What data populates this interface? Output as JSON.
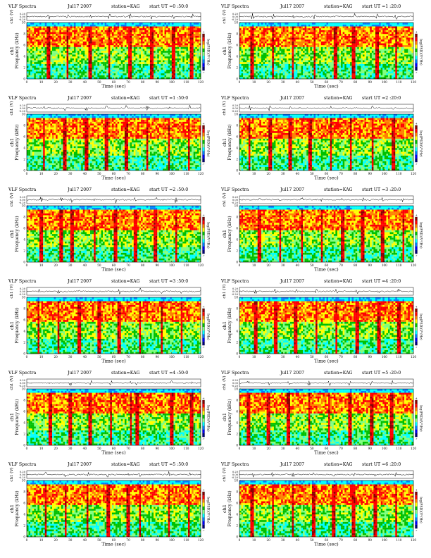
{
  "colors": {
    "background": "#ffffff",
    "colormap": [
      "#000080",
      "#0000ff",
      "#0080ff",
      "#00ffff",
      "#80ff80",
      "#00c000",
      "#ffff00",
      "#ff8000",
      "#ff0000",
      "#8b0000"
    ]
  },
  "chart_data": [
    {
      "type": "heatmap",
      "title": "VLF Spectra",
      "date": "Jul17 2007",
      "station": "station=KAG",
      "start": "start  UT =0 :50:0",
      "x": {
        "label": "Time (sec)",
        "range": [
          0,
          120
        ],
        "ticks": [
          "0",
          "10",
          "20",
          "30",
          "40",
          "50",
          "60",
          "70",
          "80",
          "90",
          "100",
          "110",
          "120"
        ]
      },
      "y": {
        "label": "Frequency (kHz)",
        "channel_label": "ch1",
        "range": [
          0,
          10
        ],
        "ticks": [
          "0",
          "2",
          "4",
          "6",
          "8",
          "10"
        ]
      },
      "trace": {
        "label": "ch1 (V)",
        "ticks": [
          "0.20",
          "0.00",
          "-0.20"
        ]
      },
      "colorbar": {
        "label": "log(PSD)(V²/Hz)",
        "ticks": [
          "-4",
          "-7"
        ]
      },
      "bursts": [
        15,
        28,
        44,
        57,
        71,
        86,
        101,
        114
      ]
    },
    {
      "type": "heatmap",
      "title": "VLF Spectra",
      "date": "Jul17 2007",
      "station": "station=KAG",
      "start": "start  UT =1 :20:0",
      "x": {
        "label": "Time (sec)",
        "range": [
          0,
          120
        ],
        "ticks": [
          "0",
          "10",
          "20",
          "30",
          "40",
          "50",
          "60",
          "70",
          "80",
          "90",
          "100",
          "110",
          "120"
        ]
      },
      "y": {
        "label": "Frequency (kHz)",
        "channel_label": "ch1",
        "range": [
          0,
          10
        ],
        "ticks": [
          "0",
          "2",
          "4",
          "6",
          "8",
          "10"
        ]
      },
      "trace": {
        "label": "ch1 (V)",
        "ticks": [
          "0.20",
          "0.00",
          "-0.20"
        ]
      },
      "colorbar": {
        "label": "log(PSD)(V²/Hz)",
        "ticks": [
          "-4",
          "-7"
        ]
      },
      "bursts": [
        9,
        23,
        37,
        52,
        66,
        79,
        95,
        108
      ]
    },
    {
      "type": "heatmap",
      "title": "VLF Spectra",
      "date": "Jul17 2007",
      "station": "station=KAG",
      "start": "start  UT =1 :50:0",
      "x": {
        "label": "Time (sec)",
        "range": [
          0,
          120
        ],
        "ticks": [
          "0",
          "10",
          "20",
          "30",
          "40",
          "50",
          "60",
          "70",
          "80",
          "90",
          "100",
          "110",
          "120"
        ]
      },
      "y": {
        "label": "Frequency (kHz)",
        "channel_label": "ch1",
        "range": [
          0,
          10
        ],
        "ticks": [
          "0",
          "2",
          "4",
          "6",
          "8",
          "10"
        ]
      },
      "trace": {
        "label": "ch1 (V)",
        "ticks": [
          "0.20",
          "0.00",
          "-0.20"
        ]
      },
      "colorbar": {
        "label": "log(PSD)(V²/Hz)",
        "ticks": [
          "-4",
          "-7"
        ]
      },
      "bursts": [
        12,
        26,
        41,
        55,
        69,
        83,
        98,
        112
      ]
    },
    {
      "type": "heatmap",
      "title": "VLF Spectra",
      "date": "Jul17 2007",
      "station": "station=KAG",
      "start": "start  UT =2 :20:0",
      "x": {
        "label": "Time (sec)",
        "range": [
          0,
          120
        ],
        "ticks": [
          "0",
          "10",
          "20",
          "30",
          "40",
          "50",
          "60",
          "70",
          "80",
          "90",
          "100",
          "110",
          "120"
        ]
      },
      "y": {
        "label": "Frequency (kHz)",
        "channel_label": "ch1",
        "range": [
          0,
          10
        ],
        "ticks": [
          "0",
          "2",
          "4",
          "6",
          "8",
          "10"
        ]
      },
      "trace": {
        "label": "ch1 (V)",
        "ticks": [
          "0.20",
          "0.00",
          "-0.20"
        ]
      },
      "colorbar": {
        "label": "log(PSD)(V²/Hz)",
        "ticks": [
          "-4",
          "-7"
        ]
      },
      "bursts": [
        7,
        21,
        35,
        49,
        63,
        77,
        92,
        106
      ]
    },
    {
      "type": "heatmap",
      "title": "VLF Spectra",
      "date": "Jul17 2007",
      "station": "station=KAG",
      "start": "start  UT =2 :50:0",
      "x": {
        "label": "Time (sec)",
        "range": [
          0,
          120
        ],
        "ticks": [
          "0",
          "10",
          "20",
          "30",
          "40",
          "50",
          "60",
          "70",
          "80",
          "90",
          "100",
          "110",
          "120"
        ]
      },
      "y": {
        "label": "Frequency (kHz)",
        "channel_label": "ch1",
        "range": [
          0,
          10
        ],
        "ticks": [
          "0",
          "2",
          "4",
          "6",
          "8",
          "10"
        ]
      },
      "trace": {
        "label": "ch1 (V)",
        "ticks": [
          "0.20",
          "0.00",
          "-0.20"
        ]
      },
      "colorbar": {
        "label": "log(PSD)(V²/Hz)",
        "ticks": [
          "-4",
          "-7"
        ]
      },
      "bursts": [
        10,
        24,
        31,
        47,
        61,
        75,
        89,
        103
      ]
    },
    {
      "type": "heatmap",
      "title": "VLF Spectra",
      "date": "Jul17 2007",
      "station": "station=KAG",
      "start": "start  UT =3 :20:0",
      "x": {
        "label": "Time (sec)",
        "range": [
          0,
          120
        ],
        "ticks": [
          "0",
          "10",
          "20",
          "30",
          "40",
          "50",
          "60",
          "70",
          "80",
          "90",
          "100",
          "110",
          "120"
        ]
      },
      "y": {
        "label": "Frequency (kHz)",
        "channel_label": "ch1",
        "range": [
          0,
          10
        ],
        "ticks": [
          "0",
          "2",
          "4",
          "6",
          "8",
          "10"
        ]
      },
      "trace": {
        "label": "ch1 (V)",
        "ticks": [
          "0.20",
          "0.00",
          "-0.20"
        ]
      },
      "colorbar": {
        "label": "log(PSD)(V²/Hz)",
        "ticks": [
          "-4",
          "-7"
        ]
      },
      "bursts": [
        14,
        28,
        43,
        57,
        71,
        85,
        99,
        113
      ]
    },
    {
      "type": "heatmap",
      "title": "VLF Spectra",
      "date": "Jul17 2007",
      "station": "station=KAG",
      "start": "start  UT =3 :50:0",
      "x": {
        "label": "Time (sec)",
        "range": [
          0,
          120
        ],
        "ticks": [
          "0",
          "10",
          "20",
          "30",
          "40",
          "50",
          "60",
          "70",
          "80",
          "90",
          "100",
          "110",
          "120"
        ]
      },
      "y": {
        "label": "Frequency (kHz)",
        "channel_label": "ch1",
        "range": [
          0,
          10
        ],
        "ticks": [
          "0",
          "2",
          "4",
          "6",
          "8",
          "10"
        ]
      },
      "trace": {
        "label": "ch1 (V)",
        "ticks": [
          "0.20",
          "0.00",
          "-0.20"
        ]
      },
      "colorbar": {
        "label": "log(PSD)(V²/Hz)",
        "ticks": [
          "-4",
          "-7"
        ]
      },
      "bursts": [
        8,
        22,
        36,
        50,
        64,
        78,
        93,
        107
      ]
    },
    {
      "type": "heatmap",
      "title": "VLF Spectra",
      "date": "Jul17 2007",
      "station": "station=KAG",
      "start": "start  UT =4 :20:0",
      "x": {
        "label": "Time (sec)",
        "range": [
          0,
          120
        ],
        "ticks": [
          "0",
          "10",
          "20",
          "30",
          "40",
          "50",
          "60",
          "70",
          "80",
          "90",
          "100",
          "110",
          "120"
        ]
      },
      "y": {
        "label": "Frequency (kHz)",
        "channel_label": "ch1",
        "range": [
          0,
          10
        ],
        "ticks": [
          "0",
          "2",
          "4",
          "6",
          "8",
          "10"
        ]
      },
      "trace": {
        "label": "ch1 (V)",
        "ticks": [
          "0.20",
          "0.00",
          "-0.20"
        ]
      },
      "colorbar": {
        "label": "log(PSD)(V²/Hz)",
        "ticks": [
          "-4",
          "-7"
        ]
      },
      "bursts": [
        11,
        25,
        39,
        53,
        67,
        81,
        96,
        110
      ]
    },
    {
      "type": "heatmap",
      "title": "VLF Spectra",
      "date": "Jul17 2007",
      "station": "station=KAG",
      "start": "start  UT =4 :50:0",
      "x": {
        "label": "Time (sec)",
        "range": [
          0,
          120
        ],
        "ticks": [
          "0",
          "10",
          "20",
          "30",
          "40",
          "50",
          "60",
          "70",
          "80",
          "90",
          "100",
          "110",
          "120"
        ]
      },
      "y": {
        "label": "Frequency (kHz)",
        "channel_label": "ch1",
        "range": [
          0,
          10
        ],
        "ticks": [
          "0",
          "2",
          "4",
          "6",
          "8",
          "10"
        ]
      },
      "trace": {
        "label": "ch1 (V)",
        "ticks": [
          "0.20",
          "0.00",
          "-0.20"
        ]
      },
      "colorbar": {
        "label": "log(PSD)(V²/Hz)",
        "ticks": [
          "-4",
          "-7"
        ]
      },
      "bursts": [
        16,
        30,
        44,
        58,
        72,
        76,
        100,
        114
      ]
    },
    {
      "type": "heatmap",
      "title": "VLF Spectra",
      "date": "Jul17 2007",
      "station": "station=KAG",
      "start": "start  UT =5 :20:0",
      "x": {
        "label": "Time (sec)",
        "range": [
          0,
          120
        ],
        "ticks": [
          "0",
          "10",
          "20",
          "30",
          "40",
          "50",
          "60",
          "70",
          "80",
          "90",
          "100",
          "110",
          "120"
        ]
      },
      "y": {
        "label": "Frequency (kHz)",
        "channel_label": "ch1",
        "range": [
          0,
          10
        ],
        "ticks": [
          "0",
          "2",
          "4",
          "6",
          "8",
          "10"
        ]
      },
      "trace": {
        "label": "ch1 (V)",
        "ticks": [
          "0.20",
          "0.00",
          "-0.20"
        ]
      },
      "colorbar": {
        "label": "log(PSD)(V²/Hz)",
        "ticks": [
          "-4",
          "-7"
        ]
      },
      "bursts": [
        6,
        20,
        34,
        48,
        62,
        76,
        91,
        105
      ]
    },
    {
      "type": "heatmap",
      "title": "VLF Spectra",
      "date": "Jul17 2007",
      "station": "station=KAG",
      "start": "start  UT =5 :50:0",
      "x": {
        "label": "Time (sec)",
        "range": [
          0,
          120
        ],
        "ticks": [
          "0",
          "10",
          "20",
          "30",
          "40",
          "50",
          "60",
          "70",
          "80",
          "90",
          "100",
          "110",
          "120"
        ]
      },
      "y": {
        "label": "Frequency (kHz)",
        "channel_label": "ch1",
        "range": [
          0,
          10
        ],
        "ticks": [
          "0",
          "2",
          "4",
          "6",
          "8",
          "10"
        ]
      },
      "trace": {
        "label": "ch1 (V)",
        "ticks": [
          "0.20",
          "0.00",
          "-0.20"
        ]
      },
      "colorbar": {
        "label": "log(PSD)(V²/Hz)",
        "ticks": [
          "-4",
          "-7"
        ]
      },
      "bursts": [
        13,
        27,
        42,
        56,
        70,
        78,
        98,
        112
      ]
    },
    {
      "type": "heatmap",
      "title": "VLF Spectra",
      "date": "Jul17 2007",
      "station": "station=KAG",
      "start": "start  UT =6 :20:0",
      "x": {
        "label": "Time (sec)",
        "range": [
          0,
          120
        ],
        "ticks": [
          "0",
          "10",
          "20",
          "30",
          "40",
          "50",
          "60",
          "70",
          "80",
          "90",
          "100",
          "110",
          "120"
        ]
      },
      "y": {
        "label": "Frequency (kHz)",
        "channel_label": "ch1",
        "range": [
          0,
          10
        ],
        "ticks": [
          "0",
          "2",
          "4",
          "6",
          "8",
          "10"
        ]
      },
      "trace": {
        "label": "ch1 (V)",
        "ticks": [
          "0.20",
          "0.00",
          "-0.20"
        ]
      },
      "colorbar": {
        "label": "log(PSD)(V²/Hz)",
        "ticks": [
          "-4",
          "-7"
        ]
      },
      "bursts": [
        9,
        23,
        37,
        51,
        65,
        79,
        94,
        108
      ]
    }
  ]
}
